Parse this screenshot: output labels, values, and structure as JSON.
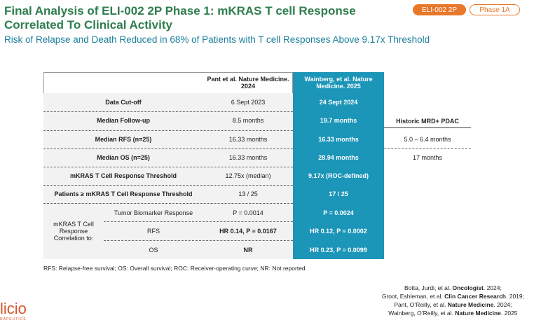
{
  "header": {
    "title": "Final Analysis of ELI-002 2P Phase 1: mKRAS T cell Response Correlated To Clinical Activity",
    "badges": [
      "ELI-002 2P",
      "Phase 1A"
    ],
    "subtitle": "Risk of Relapse and Death Reduced in 68% of Patients with T cell Responses Above 9.17x Threshold"
  },
  "table": {
    "columns": [
      "Pant et al. Nature Medicine. 2024",
      "Wainberg, et al. Nature Medicine. 2025",
      "Historic MRD+ PDAC"
    ],
    "rows": [
      [
        "Data Cut-off",
        "6 Sept 2023",
        "24 Sept 2024"
      ],
      [
        "Median Follow-up",
        "8.5 months",
        "19.7 months"
      ],
      [
        "Median RFS (n=25)",
        "16.33 months",
        "16.33 months",
        "5.0 – 6.4 months"
      ],
      [
        "Median OS (n=25)",
        "16.33 months",
        "28.94 months",
        "17 months"
      ],
      [
        "mKRAS T Cell Response Threshold",
        "12.75x (median)",
        "9.17x (ROC-defined)"
      ],
      [
        "Patients ≥ mKRAS T Cell Response Threshold",
        "13 / 25",
        "17 / 25"
      ]
    ],
    "group_label": "mKRAS T Cell Response Correlation to:",
    "group_rows": [
      [
        "Tumor Biomarker Response",
        "P = 0.0014",
        "P = 0.0024"
      ],
      [
        "RFS",
        "HR 0.14, P = 0.0167",
        "HR 0.12, P = 0.0002"
      ],
      [
        "OS",
        "NR",
        "HR 0.23, P = 0.0099"
      ]
    ]
  },
  "footnote": "RFS: Relapse-free survival; OS: Overall survival; ROC: Receiver-operating curve; NR: Not reported",
  "references": [
    [
      "Botta, Jurdi, et al. ",
      "Oncologist",
      ". 2024;"
    ],
    [
      "Groot, Eshleman, et al. ",
      "Clin Cancer Research",
      ". 2019;"
    ],
    [
      "Pant, O’Reilly, et al. ",
      "Nature Medicine",
      ". 2024;"
    ],
    [
      "Wainberg, O’Reilly, et al. ",
      "Nature Medicine",
      ". 2025"
    ]
  ],
  "logo": {
    "name": "licio",
    "tagline": "RAPEUTICS"
  }
}
